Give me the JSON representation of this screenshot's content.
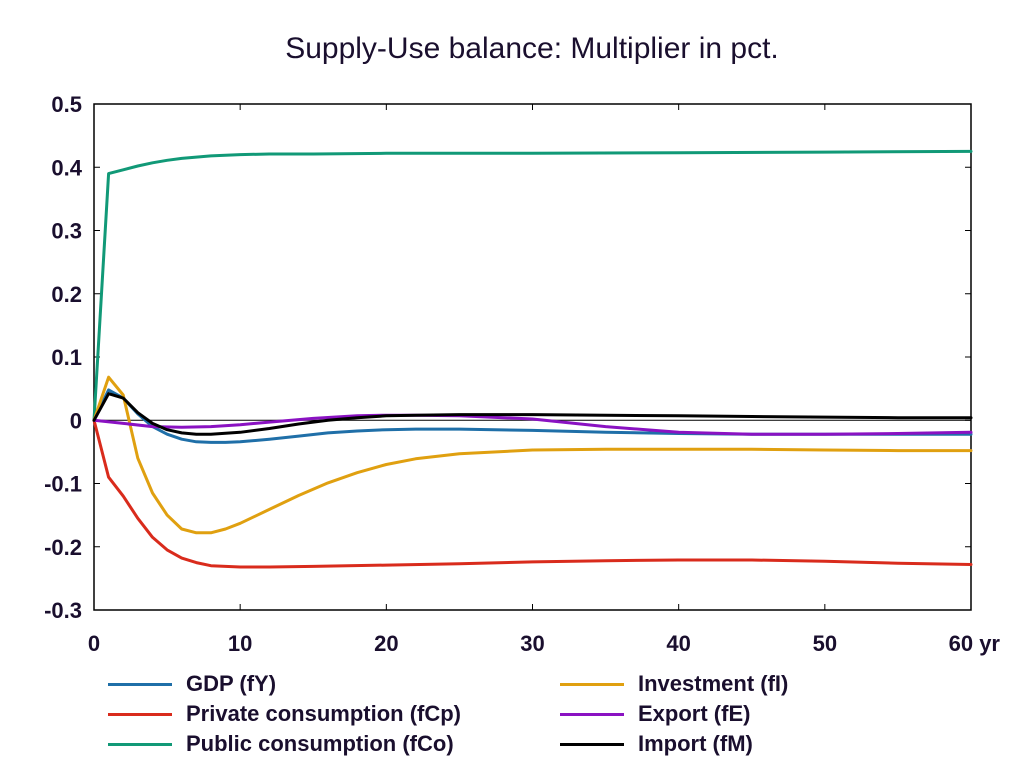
{
  "chart_data": {
    "type": "line",
    "title": "Supply-Use balance: Multiplier in pct.",
    "xlabel": "",
    "ylabel": "",
    "x_unit_label": "yr",
    "xlim": [
      0,
      60
    ],
    "ylim": [
      -0.3,
      0.5
    ],
    "x_ticks": [
      0,
      10,
      20,
      30,
      40,
      50,
      60
    ],
    "x_tick_labels": [
      "0",
      "10",
      "20",
      "30",
      "40",
      "50",
      "60 yr"
    ],
    "y_ticks": [
      -0.3,
      -0.2,
      -0.1,
      0,
      0.1,
      0.2,
      0.3,
      0.4,
      0.5
    ],
    "y_tick_labels": [
      "-0.3",
      "-0.2",
      "-0.1",
      "0",
      "0.1",
      "0.2",
      "0.3",
      "0.4",
      "0.5"
    ],
    "grid": false,
    "zero_line": true,
    "legend_position": "bottom",
    "series": [
      {
        "name": "GDP (fY)",
        "color": "#1f6fa8",
        "x": [
          0,
          1,
          2,
          3,
          4,
          5,
          6,
          7,
          8,
          9,
          10,
          12,
          14,
          16,
          18,
          20,
          22,
          25,
          30,
          35,
          40,
          45,
          50,
          55,
          60
        ],
        "y": [
          0,
          0.048,
          0.035,
          0.01,
          -0.01,
          -0.022,
          -0.03,
          -0.034,
          -0.035,
          -0.035,
          -0.034,
          -0.03,
          -0.025,
          -0.02,
          -0.017,
          -0.015,
          -0.014,
          -0.014,
          -0.016,
          -0.019,
          -0.021,
          -0.022,
          -0.022,
          -0.022,
          -0.022
        ]
      },
      {
        "name": "Private consumption (fCp)",
        "color": "#d92b1c",
        "x": [
          0,
          1,
          2,
          3,
          4,
          5,
          6,
          7,
          8,
          10,
          12,
          15,
          20,
          25,
          30,
          35,
          40,
          45,
          50,
          55,
          60
        ],
        "y": [
          0,
          -0.09,
          -0.12,
          -0.155,
          -0.185,
          -0.205,
          -0.218,
          -0.225,
          -0.23,
          -0.232,
          -0.232,
          -0.231,
          -0.229,
          -0.227,
          -0.224,
          -0.222,
          -0.221,
          -0.221,
          -0.223,
          -0.226,
          -0.228
        ]
      },
      {
        "name": "Public consumption (fCo)",
        "color": "#119977",
        "x": [
          0,
          1,
          2,
          3,
          4,
          5,
          6,
          7,
          8,
          10,
          12,
          15,
          20,
          25,
          30,
          40,
          50,
          60
        ],
        "y": [
          0,
          0.39,
          0.396,
          0.402,
          0.407,
          0.411,
          0.414,
          0.416,
          0.418,
          0.42,
          0.421,
          0.421,
          0.422,
          0.422,
          0.422,
          0.423,
          0.424,
          0.425
        ]
      },
      {
        "name": "Investment (fI)",
        "color": "#e0a010",
        "x": [
          0,
          1,
          2,
          3,
          4,
          5,
          6,
          7,
          8,
          9,
          10,
          12,
          14,
          16,
          18,
          20,
          22,
          25,
          30,
          35,
          40,
          45,
          50,
          55,
          60
        ],
        "y": [
          0,
          0.068,
          0.04,
          -0.06,
          -0.115,
          -0.15,
          -0.172,
          -0.178,
          -0.178,
          -0.172,
          -0.163,
          -0.141,
          -0.119,
          -0.099,
          -0.083,
          -0.07,
          -0.061,
          -0.053,
          -0.047,
          -0.046,
          -0.046,
          -0.046,
          -0.047,
          -0.048,
          -0.048
        ]
      },
      {
        "name": "Export (fE)",
        "color": "#8a12c2",
        "x": [
          0,
          2,
          4,
          6,
          8,
          10,
          12,
          15,
          18,
          20,
          22,
          25,
          30,
          35,
          40,
          45,
          50,
          55,
          60
        ],
        "y": [
          0,
          -0.005,
          -0.01,
          -0.011,
          -0.01,
          -0.007,
          -0.003,
          0.003,
          0.007,
          0.008,
          0.008,
          0.007,
          0.002,
          -0.01,
          -0.019,
          -0.022,
          -0.022,
          -0.021,
          -0.019
        ]
      },
      {
        "name": "Import (fM)",
        "color": "#000000",
        "x": [
          0,
          1,
          2,
          3,
          4,
          5,
          6,
          7,
          8,
          10,
          12,
          14,
          16,
          18,
          20,
          22,
          25,
          30,
          35,
          40,
          45,
          50,
          55,
          60
        ],
        "y": [
          0,
          0.042,
          0.035,
          0.012,
          -0.005,
          -0.015,
          -0.02,
          -0.022,
          -0.022,
          -0.019,
          -0.013,
          -0.006,
          0.0,
          0.004,
          0.007,
          0.008,
          0.009,
          0.009,
          0.008,
          0.007,
          0.006,
          0.005,
          0.004,
          0.004
        ]
      }
    ]
  }
}
